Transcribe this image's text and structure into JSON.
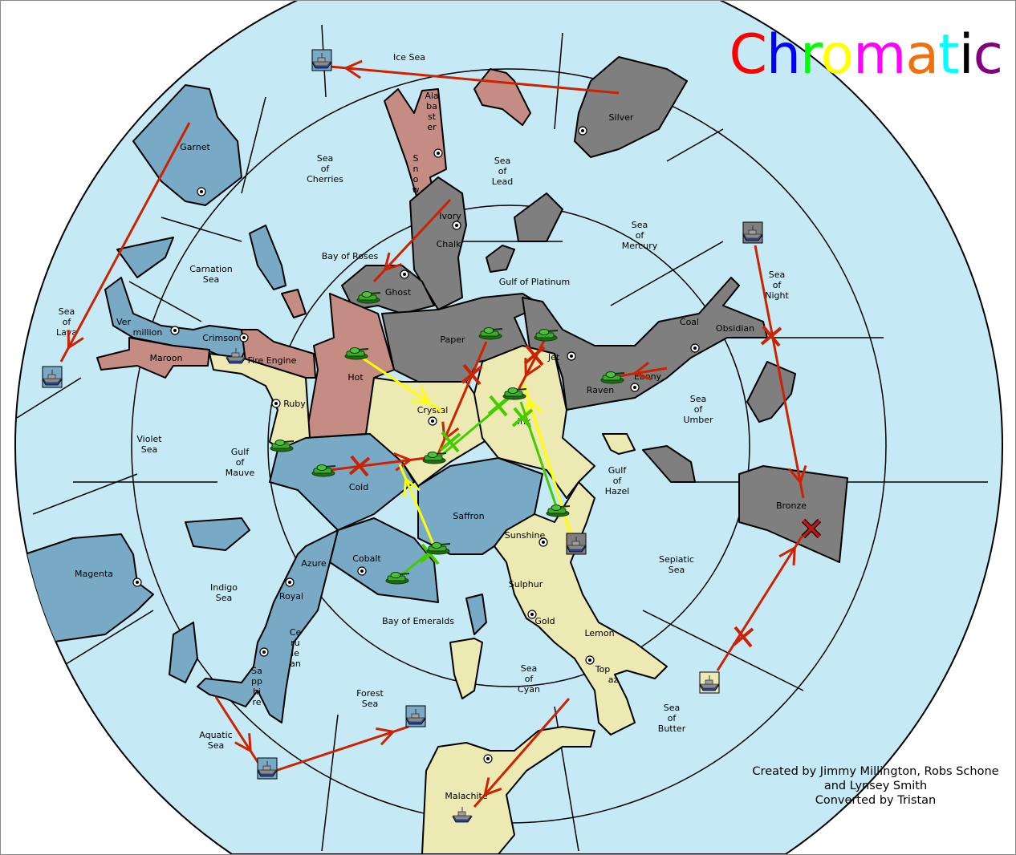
{
  "title": {
    "letters": [
      {
        "ch": "C",
        "color": "#ff0000"
      },
      {
        "ch": "h",
        "color": "#0000ff"
      },
      {
        "ch": "r",
        "color": "#00ff00"
      },
      {
        "ch": "o",
        "color": "#ffff00"
      },
      {
        "ch": "m",
        "color": "#ff00ff"
      },
      {
        "ch": "a",
        "color": "#f07010"
      },
      {
        "ch": "t",
        "color": "#00ffff"
      },
      {
        "ch": "i",
        "color": "#000000"
      },
      {
        "ch": "c",
        "color": "#800080"
      }
    ]
  },
  "credits": [
    "Created by Jimmy Millington, Robs Schone",
    "and Lynsey Smith",
    "Converted by Tristan"
  ],
  "colors": {
    "sea": "#c6eaf5",
    "grey": "#7f7f7f",
    "pink": "#c48c83",
    "blue": "#78aac5",
    "cream": "#ede9b3",
    "order_red": "#cc2200",
    "order_yellow": "#ffff00",
    "order_green": "#44cc00"
  },
  "labels": {
    "ice_sea": [
      "Ice Sea"
    ],
    "silver": [
      "Silver"
    ],
    "garnet": [
      "Garnet"
    ],
    "sea_of_cherries": [
      "Sea",
      "of",
      "Cherries"
    ],
    "alabaster": [
      "Ala",
      "ba",
      "st",
      "er"
    ],
    "snow": [
      "S",
      "n",
      "o",
      "w"
    ],
    "sea_of_lead": [
      "Sea",
      "of",
      "Lead"
    ],
    "ivory": [
      "Ivory"
    ],
    "chalk": [
      "Chalk"
    ],
    "sea_of_mercury": [
      "Sea",
      "of",
      "Mercury"
    ],
    "carnation_sea": [
      "Carnation",
      "Sea"
    ],
    "bay_of_roses": [
      "Bay of Roses"
    ],
    "gulf_of_platinum": [
      "Gulf of Platinum"
    ],
    "ghost": [
      "Ghost"
    ],
    "sea_of_night": [
      "Sea",
      "of",
      "Night"
    ],
    "sea_of_lava": [
      "Sea",
      "of",
      "Lava"
    ],
    "vermillion": [
      "Ver",
      "million"
    ],
    "crimson": [
      "Crimson"
    ],
    "coal": [
      "Coal"
    ],
    "obsidian": [
      "Obsidian"
    ],
    "paper": [
      "Paper"
    ],
    "maroon": [
      "Maroon"
    ],
    "fire_engine": [
      "Fire Engine"
    ],
    "jet": [
      "Jet"
    ],
    "hot": [
      "Hot"
    ],
    "ebony": [
      "Ebony"
    ],
    "raven": [
      "Raven"
    ],
    "ruby": [
      "Ruby"
    ],
    "crystal": [
      "Crystal"
    ],
    "ink": [
      "Ink"
    ],
    "sea_of_umber": [
      "Sea",
      "of",
      "Umber"
    ],
    "violet_sea": [
      "Violet",
      "Sea"
    ],
    "gulf_of_mauve": [
      "Gulf",
      "of",
      "Mauve"
    ],
    "gulf_of_hazel": [
      "Gulf",
      "of",
      "Hazel"
    ],
    "cold": [
      "Cold"
    ],
    "bronze": [
      "Bronze"
    ],
    "saffron": [
      "Saffron"
    ],
    "sunshine": [
      "Sunshine"
    ],
    "cobalt": [
      "Cobalt"
    ],
    "sepiatic_sea": [
      "Sepiatic",
      "Sea"
    ],
    "azure": [
      "Azure"
    ],
    "magenta": [
      "Magenta"
    ],
    "indigo_sea": [
      "Indigo",
      "Sea"
    ],
    "royal": [
      "Royal"
    ],
    "sulphur": [
      "Sulphur"
    ],
    "bay_of_emeralds": [
      "Bay of Emeralds"
    ],
    "gold": [
      "Gold"
    ],
    "cerulean": [
      "Ce",
      "ru",
      "le",
      "an"
    ],
    "lemon": [
      "Lemon"
    ],
    "sapphire": [
      "Sa",
      "pp",
      "hi",
      "re"
    ],
    "topaz": [
      "Top",
      "az"
    ],
    "sea_of_cyan": [
      "Sea",
      "of",
      "Cyan"
    ],
    "forest_sea": [
      "Forest",
      "Sea"
    ],
    "sea_of_butter": [
      "Sea",
      "of",
      "Butter"
    ],
    "aquatic_sea": [
      "Aquatic",
      "Sea"
    ],
    "malachite": [
      "Malachite"
    ]
  },
  "units": [
    {
      "type": "army",
      "location": "Ghost"
    },
    {
      "type": "army",
      "location": "Hot"
    },
    {
      "type": "army",
      "location": "Paper"
    },
    {
      "type": "army",
      "location": "Jet"
    },
    {
      "type": "army",
      "location": "Ink"
    },
    {
      "type": "army",
      "location": "Raven"
    },
    {
      "type": "army",
      "location": "Ruby"
    },
    {
      "type": "army",
      "location": "Cold"
    },
    {
      "type": "army",
      "location": "Crystal"
    },
    {
      "type": "army",
      "location": "Saffron"
    },
    {
      "type": "army",
      "location": "Cobalt"
    },
    {
      "type": "army",
      "location": "Sunshine"
    },
    {
      "type": "fleet",
      "location": "Ice Sea",
      "box": "#78aac5"
    },
    {
      "type": "fleet",
      "location": "Sea of Lava",
      "box": "#78aac5"
    },
    {
      "type": "fleet",
      "location": "Crimson",
      "box": ""
    },
    {
      "type": "fleet",
      "location": "Sea of Night",
      "box": "#7f7f7f"
    },
    {
      "type": "fleet",
      "location": "Sunshine coast",
      "box": "#7f7f7f"
    },
    {
      "type": "fleet",
      "location": "Sepiatic Sea",
      "box": "#ede9b3"
    },
    {
      "type": "fleet",
      "location": "Forest Sea",
      "box": "#78aac5"
    },
    {
      "type": "fleet",
      "location": "Aquatic Sea",
      "box": "#78aac5"
    },
    {
      "type": "fleet",
      "location": "Malachite",
      "box": ""
    }
  ],
  "orders": [
    {
      "from": "Silver",
      "to": "Ice Sea",
      "color": "red",
      "status": "ok"
    },
    {
      "from": "Garnet",
      "to": "Sea of Lava",
      "color": "red",
      "status": "ok"
    },
    {
      "from": "Ivory",
      "to": "Ghost",
      "color": "red",
      "status": "ok"
    },
    {
      "from": "Sea of Night",
      "to": "Bronze",
      "color": "red",
      "status": "failed"
    },
    {
      "from": "Sepiatic Sea",
      "to": "Bronze",
      "color": "red",
      "status": "failed"
    },
    {
      "from": "Sapphire",
      "to": "Aquatic Sea",
      "color": "red",
      "status": "ok"
    },
    {
      "from": "Aquatic Sea",
      "to": "Forest Sea",
      "color": "red",
      "status": "ok"
    },
    {
      "from": "Sea of Cyan",
      "to": "Malachite",
      "color": "red",
      "status": "ok"
    },
    {
      "from": "Paper",
      "to": "Crystal",
      "color": "red",
      "status": "failed"
    },
    {
      "from": "Cold",
      "to": "Crystal",
      "color": "red",
      "status": "failed"
    },
    {
      "from": "Jet",
      "to": "Ink",
      "color": "red",
      "status": "failed"
    },
    {
      "from": "Ebony",
      "to": "Raven",
      "color": "red",
      "status": "ok"
    },
    {
      "from": "Hot",
      "to": "Crystal",
      "color": "yellow",
      "status": "ok"
    },
    {
      "from": "Saffron",
      "to": "Cold",
      "color": "yellow",
      "status": "ok"
    },
    {
      "from": "Sunshine",
      "to": "Ink",
      "color": "yellow",
      "status": "ok"
    },
    {
      "from": "Ink",
      "to": "Crystal",
      "color": "green",
      "status": "support-cut"
    },
    {
      "from": "Sunshine",
      "to": "Ink",
      "color": "green",
      "status": "support-cut"
    },
    {
      "from": "Saffron",
      "to": "Cobalt",
      "color": "green",
      "status": "support-cut"
    }
  ],
  "dislodged": [
    "Bronze"
  ]
}
